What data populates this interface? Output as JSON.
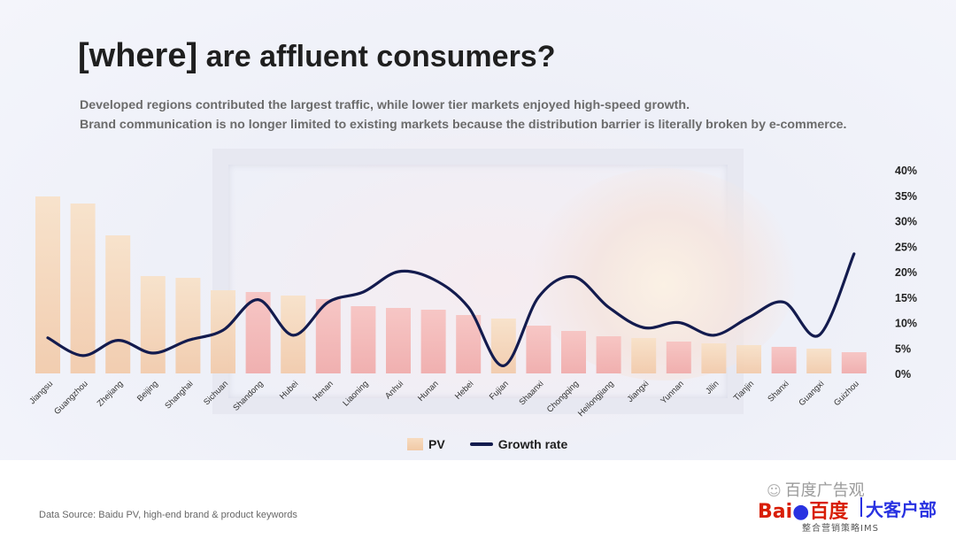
{
  "title_bracket": "[where]",
  "title_rest": " are affluent consumers?",
  "subtitle_lines": [
    "Developed regions contributed the largest traffic, while lower tier markets enjoyed high-speed growth.",
    "Brand communication is no longer limited to existing markets because the distribution barrier is literally broken by e-commerce."
  ],
  "legend": {
    "pv": "PV",
    "growth": "Growth rate"
  },
  "source": "Data Source: Baidu PV, high-end brand & product keywords",
  "watermark": "百度广告观",
  "logo": {
    "baidu": "Bai",
    "baidu_cn": "百度",
    "brand": "大客户部",
    "tagline": "整合营销策略IMS"
  },
  "colors": {
    "pv_bar_top": "#f8e1c7",
    "pv_bar_bottom": "#f2c9a8",
    "pv_bar_pink_top": "#f7c2c0",
    "pv_bar_pink_bottom": "#f0a9a8",
    "growth_line": "#131b4e"
  },
  "chart_data": {
    "type": "bar",
    "categories": [
      "Jiangsu",
      "Guangzhou",
      "Zhejiang",
      "Beijing",
      "Shanghai",
      "Sichuan",
      "Shandong",
      "Hubei",
      "Henan",
      "Liaoning",
      "Anhui",
      "Hunan",
      "Hebei",
      "Fujian",
      "Shaanxi",
      "Chongqing",
      "Heilongjiang",
      "Jiangxi",
      "Yunnan",
      "Jilin",
      "Tianjin",
      "Shanxi",
      "Guangxi",
      "Guizhou"
    ],
    "series": [
      {
        "name": "PV",
        "type": "bar",
        "values": [
          100,
          96,
          78,
          55,
          54,
          47,
          46,
          44,
          42,
          38,
          37,
          36,
          33,
          31,
          27,
          24,
          21,
          20,
          18,
          17,
          16,
          15,
          14,
          12
        ]
      },
      {
        "name": "Growth rate",
        "type": "line",
        "axis": "right",
        "values": [
          7,
          3.5,
          6.5,
          4,
          6.5,
          8.5,
          14.5,
          7.5,
          14,
          16,
          20,
          18.5,
          13,
          1.5,
          15,
          19,
          13,
          9,
          10,
          7.5,
          11,
          14,
          7.5,
          23.5
        ]
      }
    ],
    "y2_ticks": [
      "40%",
      "35%",
      "30%",
      "25%",
      "20%",
      "15%",
      "10%",
      "5%",
      "0%"
    ],
    "y2lim": [
      0,
      40
    ],
    "legend_position": "bottom-center",
    "grid": false
  }
}
